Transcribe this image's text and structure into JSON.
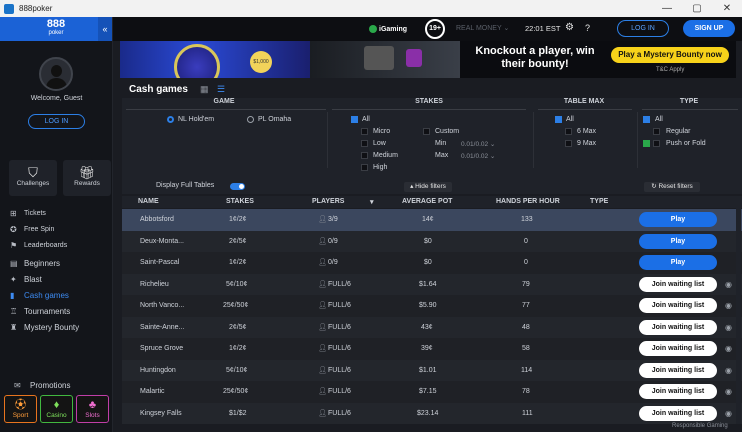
{
  "window": {
    "title": "888poker",
    "minimize": "—",
    "maximize": "▢",
    "close": "✕"
  },
  "sidebar": {
    "logo_main": "888",
    "logo_sub": "poker",
    "collapse": "«",
    "welcome": "Welcome, Guest",
    "login": "LOG IN",
    "tiles": [
      {
        "label": "Challenges",
        "icon": "shield-star-icon"
      },
      {
        "label": "Rewards",
        "icon": "gift-icon"
      }
    ],
    "small_items": [
      {
        "label": "Tickets",
        "icon": "ticket-icon"
      },
      {
        "label": "Free Spin",
        "icon": "spin-icon"
      },
      {
        "label": "Leaderboards",
        "icon": "leaderboard-icon"
      }
    ],
    "main_items": [
      {
        "label": "Beginners",
        "icon": "cards-icon"
      },
      {
        "label": "Blast",
        "icon": "blast-icon"
      },
      {
        "label": "Cash games",
        "icon": "cash-icon"
      },
      {
        "label": "Tournaments",
        "icon": "trophy-icon"
      },
      {
        "label": "Mystery Bounty",
        "icon": "bounty-icon"
      }
    ],
    "promotions": "Promotions",
    "bottom_tiles": [
      {
        "label": "Sport",
        "icon": "sport-icon"
      },
      {
        "label": "Casino",
        "icon": "casino-icon"
      },
      {
        "label": "Slots",
        "icon": "slots-icon"
      }
    ]
  },
  "topbar": {
    "igaming": "iGaming",
    "age": "19+",
    "real_money": "REAL MONEY",
    "time": "22:01 EST",
    "login": "LOG IN",
    "signup": "SIGN UP"
  },
  "banner": {
    "coin": "$1,000",
    "headline": "Knockout a player, win their bounty!",
    "cta": "Play a Mystery Bounty now",
    "tc": "T&C Apply"
  },
  "page": {
    "title": "Cash games"
  },
  "filters": {
    "game_header": "GAME",
    "stakes_header": "STAKES",
    "tablemax_header": "TABLE MAX",
    "type_header": "TYPE",
    "game_options": [
      "NL Hold'em",
      "PL Omaha"
    ],
    "stakes_all": "All",
    "stakes_options": [
      "Micro",
      "Low",
      "Medium",
      "High"
    ],
    "custom": "Custom",
    "min_label": "Min",
    "max_label": "Max",
    "min_value": "0.01/0.02",
    "max_value": "0.01/0.02",
    "tablemax_all": "All",
    "tablemax_options": [
      "6 Max",
      "9 Max"
    ],
    "type_all": "All",
    "type_options": [
      "Regular",
      "Push or Fold"
    ],
    "display_full": "Display Full Tables",
    "hide_filters": "Hide filters",
    "reset_filters": "Reset filters"
  },
  "table": {
    "headers": [
      "NAME",
      "STAKES",
      "PLAYERS",
      "AVERAGE POT",
      "HANDS PER HOUR",
      "TYPE"
    ],
    "rows": [
      {
        "name": "Abbotsford",
        "stakes": "1¢/2¢",
        "players": "3/9",
        "pot": "14¢",
        "hands": "133",
        "action": "Play"
      },
      {
        "name": "Deux-Monta...",
        "stakes": "2¢/5¢",
        "players": "0/9",
        "pot": "$0",
        "hands": "0",
        "action": "Play"
      },
      {
        "name": "Saint-Pascal",
        "stakes": "1¢/2¢",
        "players": "0/9",
        "pot": "$0",
        "hands": "0",
        "action": "Play"
      },
      {
        "name": "Richelieu",
        "stakes": "5¢/10¢",
        "players": "FULL/6",
        "pot": "$1.64",
        "hands": "79",
        "action": "Join waiting list"
      },
      {
        "name": "North Vanco...",
        "stakes": "25¢/50¢",
        "players": "FULL/6",
        "pot": "$5.90",
        "hands": "77",
        "action": "Join waiting list"
      },
      {
        "name": "Sainte-Anne...",
        "stakes": "2¢/5¢",
        "players": "FULL/6",
        "pot": "43¢",
        "hands": "48",
        "action": "Join waiting list"
      },
      {
        "name": "Spruce Grove",
        "stakes": "1¢/2¢",
        "players": "FULL/6",
        "pot": "39¢",
        "hands": "58",
        "action": "Join waiting list"
      },
      {
        "name": "Huntingdon",
        "stakes": "5¢/10¢",
        "players": "FULL/6",
        "pot": "$1.01",
        "hands": "114",
        "action": "Join waiting list"
      },
      {
        "name": "Malartic",
        "stakes": "25¢/50¢",
        "players": "FULL/6",
        "pot": "$7.15",
        "hands": "78",
        "action": "Join waiting list"
      },
      {
        "name": "Kingsey Falls",
        "stakes": "$1/$2",
        "players": "FULL/6",
        "pot": "$23.14",
        "hands": "111",
        "action": "Join waiting list"
      }
    ]
  },
  "footer": {
    "responsible": "Responsible Gaming"
  }
}
